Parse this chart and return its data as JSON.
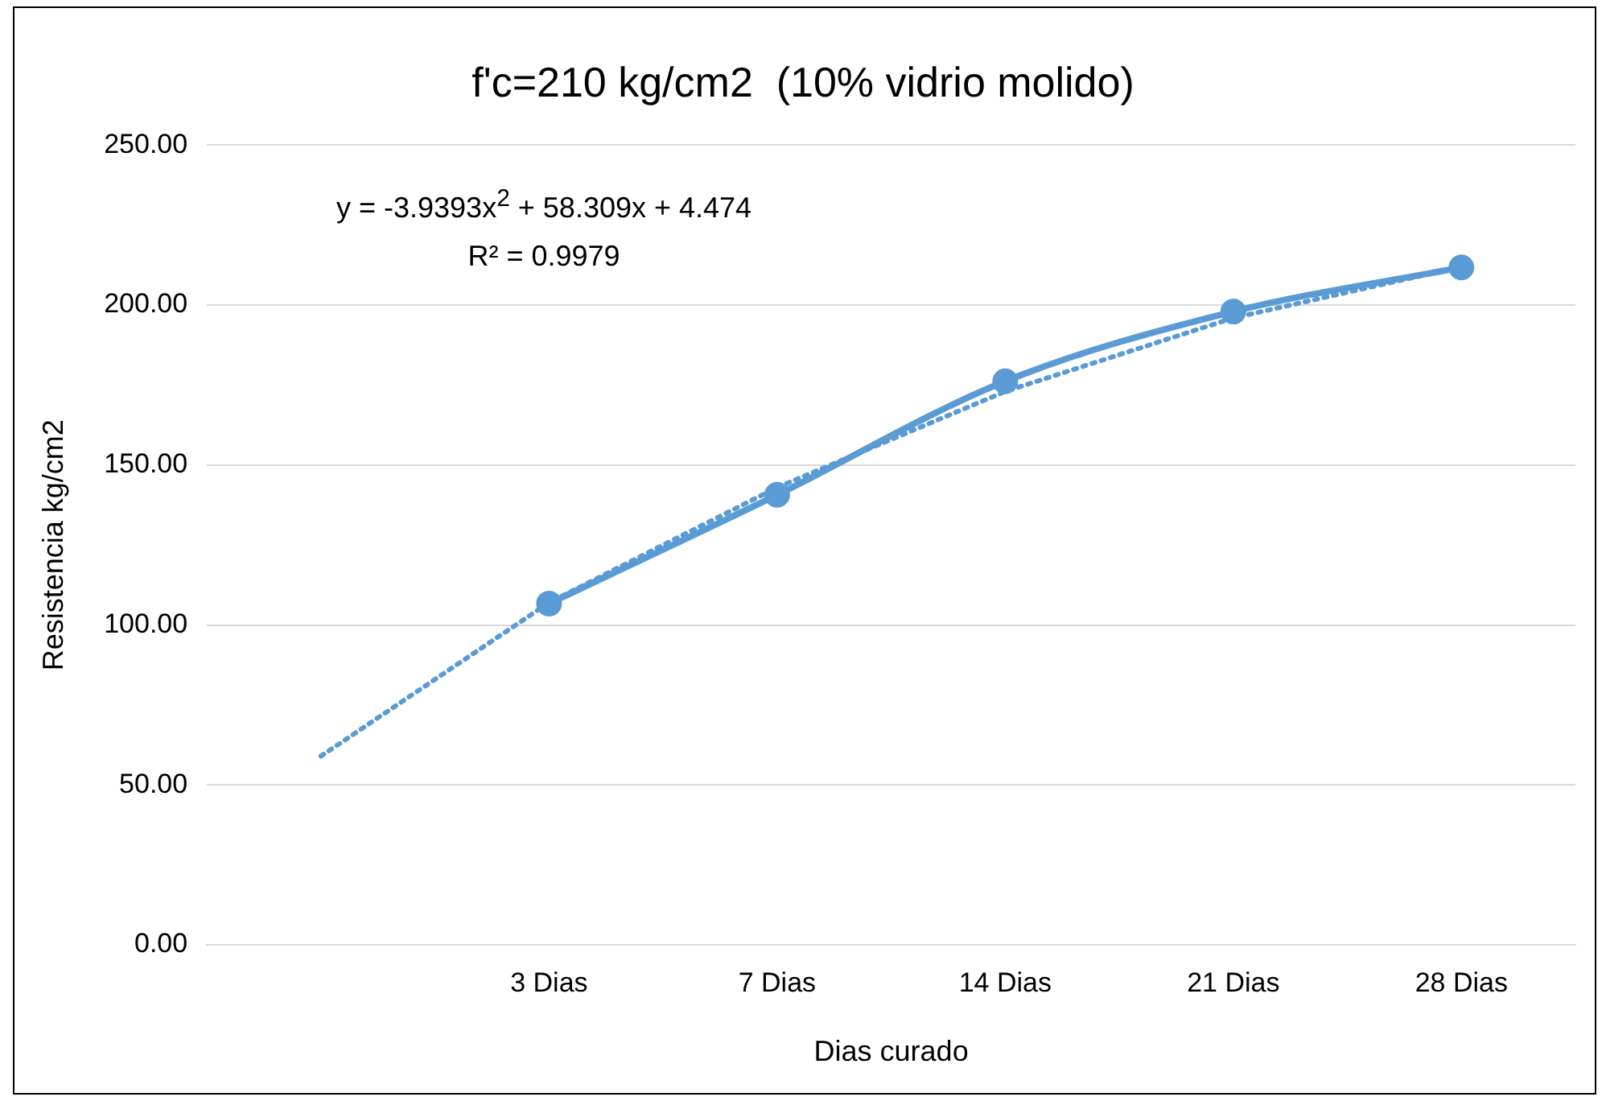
{
  "chart_data": {
    "type": "line",
    "title": "f'c=210 kg/cm2  (10% vidrio molido)",
    "xlabel": "Dias curado",
    "ylabel": "Resistencia kg/cm2",
    "categories": [
      null,
      "3 Dias",
      "7 Dias",
      "14 Dias",
      "21 Dias",
      "28 Dias"
    ],
    "series": [
      {
        "color": "#5b9bd5",
        "values": [
          null,
          106.7,
          140.7,
          176.2,
          198.0,
          211.8
        ],
        "marker": "circle",
        "line_style": "solid"
      },
      {
        "type": "line",
        "color": "#5b9bd5",
        "values": [
          59,
          107,
          143,
          173,
          196,
          212
        ],
        "marker": "none",
        "line_style": "dotted"
      }
    ],
    "ylim": [
      0,
      250
    ],
    "yticks": [
      {
        "value": 0,
        "label": "0.00"
      },
      {
        "value": 50,
        "label": "50.00"
      },
      {
        "value": 100,
        "label": "100.00"
      },
      {
        "value": 150,
        "label": "150.00"
      },
      {
        "value": 200,
        "label": "200.00"
      },
      {
        "value": 250,
        "label": "250.00"
      }
    ],
    "grid": "y",
    "legend": false,
    "annotations": [
      "y = -3.9393x$^{2}$ + 58.309x + 4.474",
      "R² = 0.9979"
    ]
  }
}
